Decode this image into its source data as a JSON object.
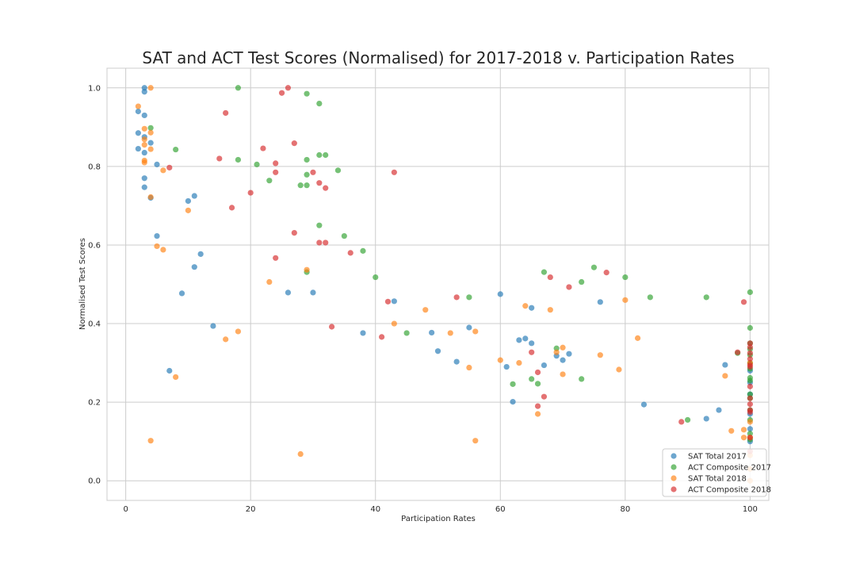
{
  "chart_data": {
    "type": "scatter",
    "title": "SAT and ACT Test Scores (Normalised) for 2017-2018 v. Participation Rates",
    "xlabel": "Participation Rates",
    "ylabel": "Normalised Test Scores",
    "xlim": [
      -3,
      103
    ],
    "ylim": [
      -0.05,
      1.05
    ],
    "xticks": [
      0,
      20,
      40,
      60,
      80,
      100
    ],
    "yticks": [
      0.0,
      0.2,
      0.4,
      0.6,
      0.8,
      1.0
    ],
    "grid": true,
    "legend_position": "lower-right",
    "series": [
      {
        "name": "SAT Total 2017",
        "color": "#1f77b4",
        "points": [
          [
            2,
            0.94
          ],
          [
            2,
            0.885
          ],
          [
            2,
            0.845
          ],
          [
            3,
            1.0
          ],
          [
            3,
            0.99
          ],
          [
            3,
            0.93
          ],
          [
            3,
            0.875
          ],
          [
            3,
            0.835
          ],
          [
            3,
            0.77
          ],
          [
            3,
            0.747
          ],
          [
            4,
            0.86
          ],
          [
            4,
            0.72
          ],
          [
            5,
            0.805
          ],
          [
            5,
            0.623
          ],
          [
            7,
            0.28
          ],
          [
            9,
            0.477
          ],
          [
            10,
            0.712
          ],
          [
            11,
            0.725
          ],
          [
            11,
            0.544
          ],
          [
            12,
            0.577
          ],
          [
            14,
            0.394
          ],
          [
            26,
            0.479
          ],
          [
            30,
            0.479
          ],
          [
            38,
            0.376
          ],
          [
            43,
            0.457
          ],
          [
            49,
            0.377
          ],
          [
            50,
            0.33
          ],
          [
            53,
            0.303
          ],
          [
            55,
            0.39
          ],
          [
            60,
            0.475
          ],
          [
            61,
            0.29
          ],
          [
            62,
            0.201
          ],
          [
            63,
            0.358
          ],
          [
            64,
            0.362
          ],
          [
            65,
            0.35
          ],
          [
            65,
            0.44
          ],
          [
            67,
            0.294
          ],
          [
            69,
            0.318
          ],
          [
            70,
            0.307
          ],
          [
            71,
            0.323
          ],
          [
            76,
            0.455
          ],
          [
            83,
            0.194
          ],
          [
            93,
            0.158
          ],
          [
            95,
            0.18
          ],
          [
            96,
            0.295
          ],
          [
            100,
            0.28
          ],
          [
            100,
            0.25
          ],
          [
            100,
            0.22
          ],
          [
            100,
            0.17
          ],
          [
            100,
            0.132
          ],
          [
            100,
            0.1
          ]
        ]
      },
      {
        "name": "ACT Composite 2017",
        "color": "#2ca02c",
        "points": [
          [
            4,
            0.898
          ],
          [
            8,
            0.843
          ],
          [
            18,
            1.0
          ],
          [
            18,
            0.817
          ],
          [
            21,
            0.805
          ],
          [
            23,
            0.764
          ],
          [
            28,
            0.752
          ],
          [
            29,
            0.985
          ],
          [
            29,
            0.817
          ],
          [
            29,
            0.779
          ],
          [
            29,
            0.752
          ],
          [
            29,
            0.531
          ],
          [
            31,
            0.96
          ],
          [
            31,
            0.829
          ],
          [
            31,
            0.65
          ],
          [
            32,
            0.829
          ],
          [
            34,
            0.79
          ],
          [
            35,
            0.623
          ],
          [
            38,
            0.585
          ],
          [
            40,
            0.518
          ],
          [
            45,
            0.376
          ],
          [
            55,
            0.467
          ],
          [
            62,
            0.246
          ],
          [
            65,
            0.259
          ],
          [
            66,
            0.247
          ],
          [
            67,
            0.531
          ],
          [
            69,
            0.337
          ],
          [
            73,
            0.506
          ],
          [
            73,
            0.259
          ],
          [
            75,
            0.543
          ],
          [
            80,
            0.518
          ],
          [
            84,
            0.467
          ],
          [
            90,
            0.155
          ],
          [
            93,
            0.467
          ],
          [
            98,
            0.325
          ],
          [
            100,
            0.48
          ],
          [
            100,
            0.389
          ],
          [
            100,
            0.35
          ],
          [
            100,
            0.335
          ],
          [
            100,
            0.32
          ],
          [
            100,
            0.3
          ],
          [
            100,
            0.285
          ],
          [
            100,
            0.262
          ],
          [
            100,
            0.255
          ],
          [
            100,
            0.22
          ],
          [
            100,
            0.21
          ],
          [
            100,
            0.18
          ],
          [
            100,
            0.155
          ],
          [
            100,
            0.12
          ],
          [
            100,
            0.105
          ]
        ]
      },
      {
        "name": "SAT Total 2018",
        "color": "#ff7f0e",
        "points": [
          [
            2,
            0.953
          ],
          [
            3,
            0.896
          ],
          [
            3,
            0.869
          ],
          [
            3,
            0.855
          ],
          [
            3,
            0.815
          ],
          [
            3,
            0.81
          ],
          [
            4,
            1.0
          ],
          [
            4,
            0.886
          ],
          [
            4,
            0.844
          ],
          [
            4,
            0.722
          ],
          [
            4,
            0.102
          ],
          [
            5,
            0.597
          ],
          [
            6,
            0.79
          ],
          [
            6,
            0.588
          ],
          [
            8,
            0.264
          ],
          [
            10,
            0.688
          ],
          [
            16,
            0.36
          ],
          [
            18,
            0.38
          ],
          [
            23,
            0.506
          ],
          [
            28,
            0.068
          ],
          [
            29,
            0.537
          ],
          [
            43,
            0.4
          ],
          [
            48,
            0.435
          ],
          [
            52,
            0.376
          ],
          [
            55,
            0.288
          ],
          [
            56,
            0.38
          ],
          [
            56,
            0.102
          ],
          [
            60,
            0.307
          ],
          [
            63,
            0.3
          ],
          [
            64,
            0.445
          ],
          [
            66,
            0.17
          ],
          [
            68,
            0.435
          ],
          [
            69,
            0.327
          ],
          [
            70,
            0.339
          ],
          [
            70,
            0.271
          ],
          [
            76,
            0.32
          ],
          [
            79,
            0.283
          ],
          [
            80,
            0.46
          ],
          [
            82,
            0.363
          ],
          [
            96,
            0.267
          ],
          [
            97,
            0.127
          ],
          [
            99,
            0.13
          ],
          [
            99,
            0.11
          ],
          [
            100,
            0.3
          ],
          [
            100,
            0.15
          ],
          [
            100,
            0.11
          ],
          [
            100,
            0.065
          ],
          [
            100,
            0.03
          ],
          [
            100,
            0.0
          ]
        ]
      },
      {
        "name": "ACT Composite 2018",
        "color": "#d62728",
        "points": [
          [
            7,
            0.797
          ],
          [
            15,
            0.82
          ],
          [
            16,
            0.936
          ],
          [
            17,
            0.695
          ],
          [
            20,
            0.733
          ],
          [
            22,
            0.846
          ],
          [
            24,
            0.808
          ],
          [
            24,
            0.785
          ],
          [
            24,
            0.567
          ],
          [
            25,
            0.987
          ],
          [
            26,
            1.0
          ],
          [
            27,
            0.859
          ],
          [
            27,
            0.631
          ],
          [
            30,
            0.785
          ],
          [
            31,
            0.758
          ],
          [
            31,
            0.606
          ],
          [
            32,
            0.745
          ],
          [
            32,
            0.606
          ],
          [
            33,
            0.392
          ],
          [
            36,
            0.58
          ],
          [
            41,
            0.366
          ],
          [
            42,
            0.456
          ],
          [
            43,
            0.785
          ],
          [
            53,
            0.467
          ],
          [
            65,
            0.327
          ],
          [
            66,
            0.276
          ],
          [
            66,
            0.19
          ],
          [
            67,
            0.214
          ],
          [
            68,
            0.518
          ],
          [
            71,
            0.493
          ],
          [
            77,
            0.53
          ],
          [
            89,
            0.15
          ],
          [
            98,
            0.327
          ],
          [
            99,
            0.455
          ],
          [
            100,
            0.35
          ],
          [
            100,
            0.34
          ],
          [
            100,
            0.325
          ],
          [
            100,
            0.31
          ],
          [
            100,
            0.295
          ],
          [
            100,
            0.29
          ],
          [
            100,
            0.24
          ],
          [
            100,
            0.21
          ],
          [
            100,
            0.195
          ],
          [
            100,
            0.18
          ],
          [
            100,
            0.175
          ],
          [
            100,
            0.11
          ],
          [
            100,
            0.075
          ]
        ]
      }
    ]
  }
}
